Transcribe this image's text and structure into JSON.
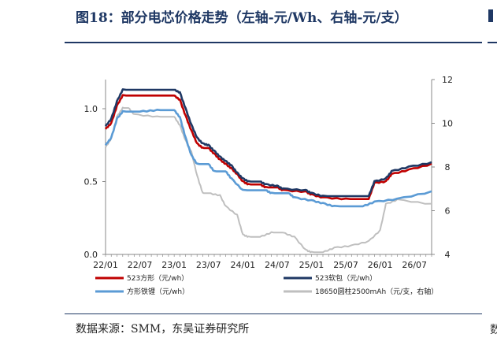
{
  "header": {
    "title": "图18：部分电芯价格走势（左轴-元/Wh、右轴-元/支）"
  },
  "footer": {
    "source": "数据来源：SMM，东吴证券研究所",
    "right_fragment": "数"
  },
  "chart_data": {
    "type": "line",
    "title": "部分电芯价格走势（左轴-元/Wh、右轴-元/支）",
    "x_ticks": [
      "22/01",
      "22/07",
      "23/01",
      "23/07",
      "24/01",
      "24/07",
      "25/01",
      "25/07",
      "26/01",
      "26/07"
    ],
    "x_range": [
      "2022-01",
      "2026-10"
    ],
    "left_axis": {
      "ylim": [
        0,
        1.2
      ],
      "ticks": [
        "0.0",
        "0.5",
        "1.0"
      ]
    },
    "right_axis": {
      "ylim": [
        4,
        12
      ],
      "ticks": [
        "4",
        "6",
        "8",
        "10",
        "12"
      ]
    },
    "grid": false,
    "legend_position": "bottom",
    "series": [
      {
        "name": "523方形（元/wh）",
        "axis": "left",
        "color": "#c00000",
        "points": [
          [
            "2022-01",
            0.86
          ],
          [
            "2022-02",
            0.9
          ],
          [
            "2022-03",
            1.02
          ],
          [
            "2022-04",
            1.09
          ],
          [
            "2022-07",
            1.09
          ],
          [
            "2022-10",
            1.09
          ],
          [
            "2023-01",
            1.09
          ],
          [
            "2023-02",
            1.06
          ],
          [
            "2023-03",
            0.95
          ],
          [
            "2023-04",
            0.85
          ],
          [
            "2023-05",
            0.76
          ],
          [
            "2023-06",
            0.73
          ],
          [
            "2023-07",
            0.73
          ],
          [
            "2023-08",
            0.69
          ],
          [
            "2023-09",
            0.65
          ],
          [
            "2023-10",
            0.62
          ],
          [
            "2023-11",
            0.59
          ],
          [
            "2023-12",
            0.55
          ],
          [
            "2024-01",
            0.5
          ],
          [
            "2024-02",
            0.48
          ],
          [
            "2024-04",
            0.48
          ],
          [
            "2024-05",
            0.46
          ],
          [
            "2024-07",
            0.46
          ],
          [
            "2024-08",
            0.44
          ],
          [
            "2024-12",
            0.43
          ],
          [
            "2025-01",
            0.41
          ],
          [
            "2025-03",
            0.39
          ],
          [
            "2025-07",
            0.38
          ],
          [
            "2025-11",
            0.38
          ],
          [
            "2025-12",
            0.49
          ],
          [
            "2026-02",
            0.5
          ],
          [
            "2026-03",
            0.55
          ],
          [
            "2026-06",
            0.58
          ],
          [
            "2026-10",
            0.62
          ]
        ]
      },
      {
        "name": "523软包（元/wh）",
        "axis": "left",
        "color": "#1f3864",
        "points": [
          [
            "2022-01",
            0.88
          ],
          [
            "2022-02",
            0.93
          ],
          [
            "2022-03",
            1.05
          ],
          [
            "2022-04",
            1.13
          ],
          [
            "2022-07",
            1.13
          ],
          [
            "2022-10",
            1.13
          ],
          [
            "2023-01",
            1.13
          ],
          [
            "2023-02",
            1.11
          ],
          [
            "2023-03",
            1.0
          ],
          [
            "2023-04",
            0.89
          ],
          [
            "2023-05",
            0.8
          ],
          [
            "2023-06",
            0.76
          ],
          [
            "2023-07",
            0.75
          ],
          [
            "2023-08",
            0.71
          ],
          [
            "2023-09",
            0.67
          ],
          [
            "2023-10",
            0.64
          ],
          [
            "2023-11",
            0.61
          ],
          [
            "2023-12",
            0.56
          ],
          [
            "2024-01",
            0.52
          ],
          [
            "2024-02",
            0.5
          ],
          [
            "2024-04",
            0.5
          ],
          [
            "2024-05",
            0.48
          ],
          [
            "2024-07",
            0.47
          ],
          [
            "2024-08",
            0.45
          ],
          [
            "2024-12",
            0.44
          ],
          [
            "2025-01",
            0.42
          ],
          [
            "2025-03",
            0.4
          ],
          [
            "2025-07",
            0.4
          ],
          [
            "2025-11",
            0.4
          ],
          [
            "2025-12",
            0.5
          ],
          [
            "2026-02",
            0.52
          ],
          [
            "2026-03",
            0.57
          ],
          [
            "2026-06",
            0.6
          ],
          [
            "2026-10",
            0.63
          ]
        ]
      },
      {
        "name": "方形铁锂（元/wh）",
        "axis": "left",
        "color": "#5b9bd5",
        "points": [
          [
            "2022-01",
            0.75
          ],
          [
            "2022-02",
            0.8
          ],
          [
            "2022-03",
            0.93
          ],
          [
            "2022-04",
            0.98
          ],
          [
            "2022-07",
            0.98
          ],
          [
            "2022-10",
            0.99
          ],
          [
            "2023-01",
            0.99
          ],
          [
            "2023-02",
            0.94
          ],
          [
            "2023-03",
            0.8
          ],
          [
            "2023-04",
            0.68
          ],
          [
            "2023-05",
            0.62
          ],
          [
            "2023-07",
            0.62
          ],
          [
            "2023-08",
            0.57
          ],
          [
            "2023-10",
            0.57
          ],
          [
            "2023-11",
            0.52
          ],
          [
            "2024-01",
            0.44
          ],
          [
            "2024-05",
            0.44
          ],
          [
            "2024-06",
            0.42
          ],
          [
            "2024-09",
            0.42
          ],
          [
            "2024-10",
            0.39
          ],
          [
            "2025-01",
            0.37
          ],
          [
            "2025-03",
            0.35
          ],
          [
            "2025-05",
            0.33
          ],
          [
            "2025-10",
            0.33
          ],
          [
            "2025-12",
            0.36
          ],
          [
            "2026-04",
            0.38
          ],
          [
            "2026-10",
            0.43
          ]
        ]
      },
      {
        "name": "18650圆柱2500mAh（元/支，右轴）",
        "axis": "right",
        "color": "#bfbfbf",
        "points": [
          [
            "2022-01",
            8.9
          ],
          [
            "2022-02",
            9.3
          ],
          [
            "2022-03",
            10.3
          ],
          [
            "2022-04",
            10.7
          ],
          [
            "2022-05",
            10.7
          ],
          [
            "2022-06",
            10.4
          ],
          [
            "2022-10",
            10.3
          ],
          [
            "2023-01",
            10.3
          ],
          [
            "2023-02",
            9.9
          ],
          [
            "2023-03",
            9.2
          ],
          [
            "2023-04",
            8.7
          ],
          [
            "2023-05",
            7.6
          ],
          [
            "2023-06",
            6.8
          ],
          [
            "2023-07",
            6.8
          ],
          [
            "2023-09",
            6.7
          ],
          [
            "2023-10",
            6.2
          ],
          [
            "2023-12",
            5.8
          ],
          [
            "2024-01",
            4.9
          ],
          [
            "2024-02",
            4.8
          ],
          [
            "2024-04",
            4.8
          ],
          [
            "2024-06",
            5.0
          ],
          [
            "2024-08",
            5.0
          ],
          [
            "2024-10",
            4.8
          ],
          [
            "2024-12",
            4.2
          ],
          [
            "2025-01",
            4.1
          ],
          [
            "2025-03",
            4.1
          ],
          [
            "2025-05",
            4.3
          ],
          [
            "2025-08",
            4.4
          ],
          [
            "2025-11",
            4.6
          ],
          [
            "2026-01",
            5.1
          ],
          [
            "2026-02",
            6.3
          ],
          [
            "2026-04",
            6.5
          ],
          [
            "2026-10",
            6.3
          ]
        ]
      }
    ]
  }
}
